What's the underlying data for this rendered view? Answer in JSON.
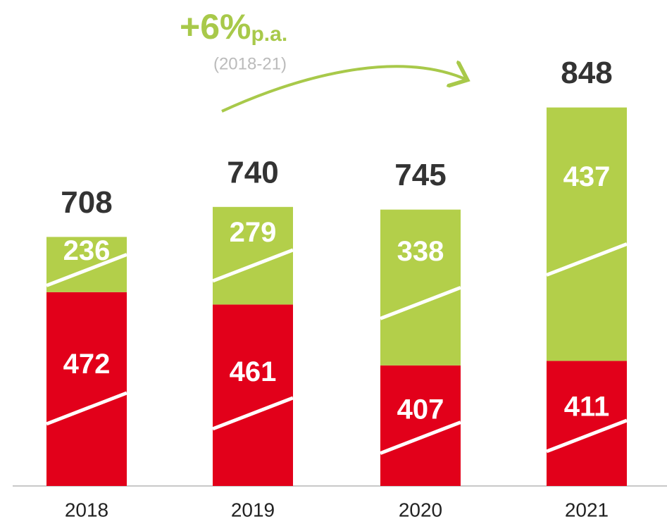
{
  "chart_data": {
    "type": "stacked_bar",
    "categories": [
      "2018",
      "2019",
      "2020",
      "2021"
    ],
    "series": [
      {
        "color": "#e2001a",
        "values": [
          472,
          461,
          407,
          411
        ]
      },
      {
        "color": "#b3cf4a",
        "values": [
          236,
          279,
          338,
          437
        ]
      }
    ],
    "totals": [
      708,
      740,
      745,
      848
    ],
    "annotation": {
      "growth": "+6%",
      "unit": "p.a.",
      "period": "(2018-21)"
    }
  }
}
